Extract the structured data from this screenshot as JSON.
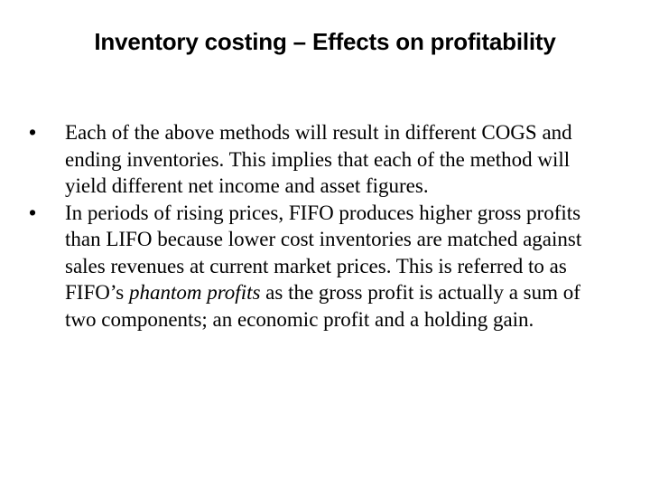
{
  "slide": {
    "title": "Inventory costing – Effects on profitability",
    "bullets": [
      {
        "marker": "•",
        "text": "Each of the above methods will result in different COGS and ending inventories. This implies that each of the method will yield different net income and asset figures."
      },
      {
        "marker": "•",
        "text_before": "In periods of rising prices, FIFO produces higher gross profits than LIFO because lower cost inventories are matched against sales revenues at current market prices. This is referred to as FIFO’s ",
        "text_italic": "phantom profits",
        "text_after": " as the gross profit is actually a sum of two components; an economic profit and a holding gain."
      }
    ]
  }
}
